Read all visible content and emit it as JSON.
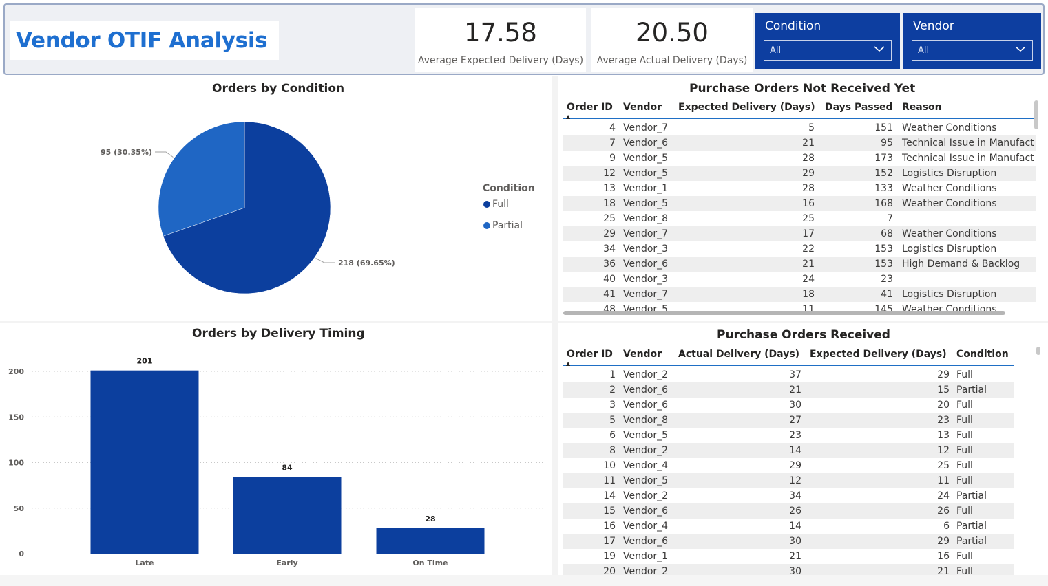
{
  "header": {
    "title": "Vendor OTIF Analysis",
    "kpis": [
      {
        "value": "17.58",
        "label": "Average Expected Delivery (Days)"
      },
      {
        "value": "20.50",
        "label": "Average Actual Delivery (Days)"
      }
    ],
    "slicers": [
      {
        "title": "Condition",
        "value": "All",
        "icon": "chevron-down-icon"
      },
      {
        "title": "Vendor",
        "value": "All",
        "icon": "chevron-down-icon"
      }
    ]
  },
  "colors": {
    "title_blue": "#1e6fd0",
    "slicer_bg": "#0d3ea0",
    "full": "#0c3f9e",
    "partial": "#1f66c4",
    "bar": "#0c3f9e"
  },
  "pie": {
    "title": "Orders by Condition",
    "legend_title": "Condition",
    "slices": [
      {
        "name": "Full",
        "value": 218,
        "label": "218 (69.65%)",
        "color": "#0c3f9e"
      },
      {
        "name": "Partial",
        "value": 95,
        "label": "95 (30.35%)",
        "color": "#1f66c4"
      }
    ]
  },
  "chart_data": [
    {
      "type": "pie",
      "title": "Orders by Condition",
      "legend_title": "Condition",
      "categories": [
        "Full",
        "Partial"
      ],
      "values": [
        218,
        95
      ],
      "data_labels": [
        "218 (69.65%)",
        "95 (30.35%)"
      ],
      "legend": "right"
    },
    {
      "type": "bar",
      "title": "Orders by Delivery Timing",
      "categories": [
        "Late",
        "Early",
        "On Time"
      ],
      "values": [
        201,
        84,
        28
      ],
      "ylim": [
        0,
        200
      ],
      "yticks": [
        0,
        50,
        100,
        150,
        200
      ],
      "grid": true
    }
  ],
  "bar": {
    "title": "Orders by Delivery Timing",
    "categories": [
      "Late",
      "Early",
      "On Time"
    ],
    "values": [
      201,
      84,
      28
    ],
    "yticks": [
      "0",
      "50",
      "100",
      "150",
      "200"
    ],
    "ymax": 200
  },
  "not_received": {
    "title": "Purchase Orders Not Received Yet",
    "columns": [
      "Order ID",
      "Vendor",
      "Expected Delivery (Days)",
      "Days Passed",
      "Reason"
    ],
    "rows": [
      [
        "4",
        "Vendor_7",
        "5",
        "151",
        "Weather Conditions"
      ],
      [
        "7",
        "Vendor_6",
        "21",
        "95",
        "Technical Issue in Manufact"
      ],
      [
        "9",
        "Vendor_5",
        "28",
        "173",
        "Technical Issue in Manufact"
      ],
      [
        "12",
        "Vendor_5",
        "29",
        "152",
        "Logistics Disruption"
      ],
      [
        "13",
        "Vendor_1",
        "28",
        "133",
        "Weather Conditions"
      ],
      [
        "18",
        "Vendor_5",
        "16",
        "168",
        "Weather Conditions"
      ],
      [
        "25",
        "Vendor_8",
        "25",
        "7",
        ""
      ],
      [
        "29",
        "Vendor_7",
        "17",
        "68",
        "Weather Conditions"
      ],
      [
        "34",
        "Vendor_3",
        "22",
        "153",
        "Logistics Disruption"
      ],
      [
        "36",
        "Vendor_6",
        "21",
        "153",
        "High Demand & Backlog"
      ],
      [
        "40",
        "Vendor_3",
        "24",
        "23",
        ""
      ],
      [
        "41",
        "Vendor_7",
        "18",
        "41",
        "Logistics Disruption"
      ],
      [
        "48",
        "Vendor_5",
        "11",
        "145",
        "Weather Conditions"
      ]
    ]
  },
  "received": {
    "title": "Purchase Orders Received",
    "columns": [
      "Order ID",
      "Vendor",
      "Actual Delivery (Days)",
      "Expected Delivery (Days)",
      "Condition"
    ],
    "rows": [
      [
        "1",
        "Vendor_2",
        "37",
        "29",
        "Full"
      ],
      [
        "2",
        "Vendor_6",
        "21",
        "15",
        "Partial"
      ],
      [
        "3",
        "Vendor_6",
        "30",
        "20",
        "Full"
      ],
      [
        "5",
        "Vendor_8",
        "27",
        "23",
        "Full"
      ],
      [
        "6",
        "Vendor_5",
        "23",
        "13",
        "Full"
      ],
      [
        "8",
        "Vendor_2",
        "14",
        "12",
        "Full"
      ],
      [
        "10",
        "Vendor_4",
        "29",
        "25",
        "Full"
      ],
      [
        "11",
        "Vendor_5",
        "12",
        "11",
        "Full"
      ],
      [
        "14",
        "Vendor_2",
        "34",
        "24",
        "Partial"
      ],
      [
        "15",
        "Vendor_6",
        "26",
        "26",
        "Full"
      ],
      [
        "16",
        "Vendor_4",
        "14",
        "6",
        "Partial"
      ],
      [
        "17",
        "Vendor_6",
        "30",
        "29",
        "Partial"
      ],
      [
        "19",
        "Vendor_1",
        "21",
        "16",
        "Full"
      ],
      [
        "20",
        "Vendor_2",
        "30",
        "21",
        "Full"
      ]
    ]
  }
}
